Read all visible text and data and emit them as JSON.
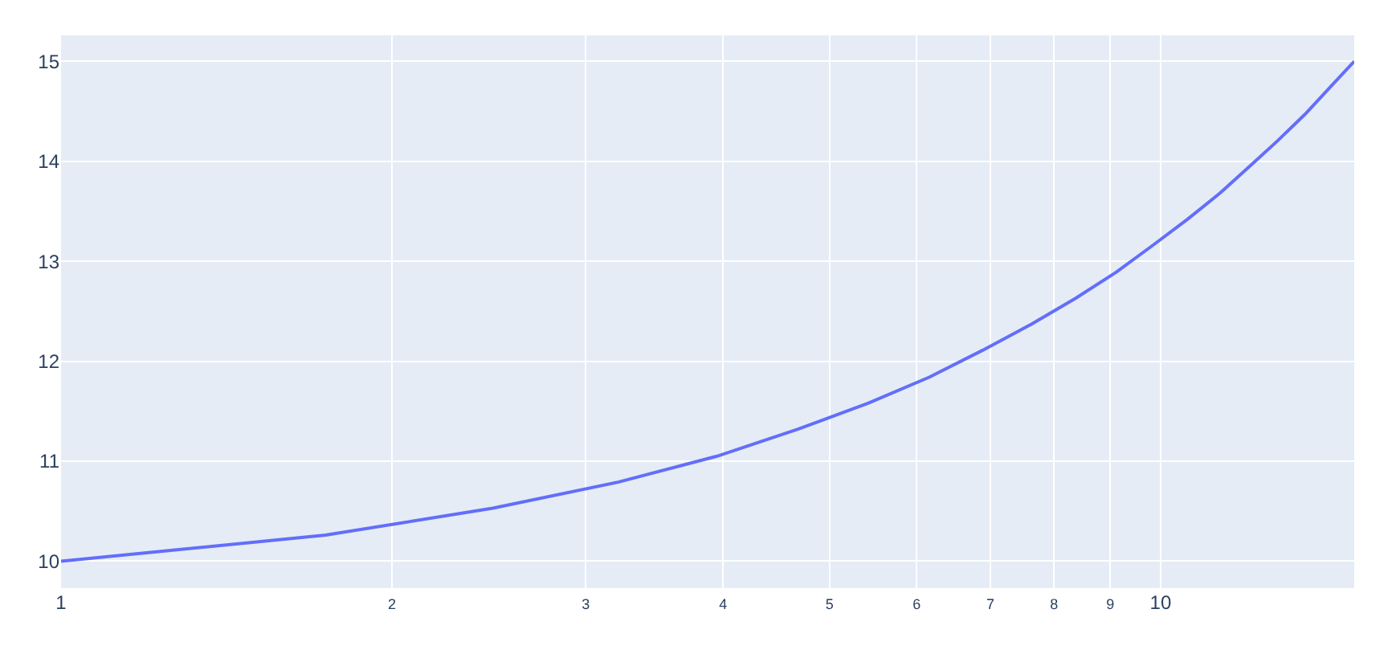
{
  "chart_data": {
    "type": "line",
    "log": "x",
    "grid": true,
    "marker": "none",
    "line_style": "solid",
    "x": [
      1,
      1.74,
      2.47,
      3.21,
      3.95,
      4.68,
      5.42,
      6.16,
      6.89,
      7.63,
      8.37,
      9.11,
      9.84,
      10.58,
      11.32,
      12.05,
      12.79,
      13.53,
      14.26,
      15
    ],
    "series": [
      {
        "color": "#636efa",
        "values": [
          10,
          10.26,
          10.53,
          10.79,
          11.05,
          11.32,
          11.58,
          11.84,
          12.11,
          12.37,
          12.63,
          12.89,
          13.16,
          13.42,
          13.68,
          13.95,
          14.21,
          14.47,
          14.74,
          15
        ]
      }
    ],
    "xlim": [
      1,
      15
    ],
    "xticks": [
      1,
      2,
      3,
      4,
      5,
      6,
      7,
      8,
      9,
      10
    ],
    "ylim": [
      9.73,
      15.26
    ],
    "yticks": [
      10,
      11,
      12,
      13,
      14,
      15
    ]
  }
}
